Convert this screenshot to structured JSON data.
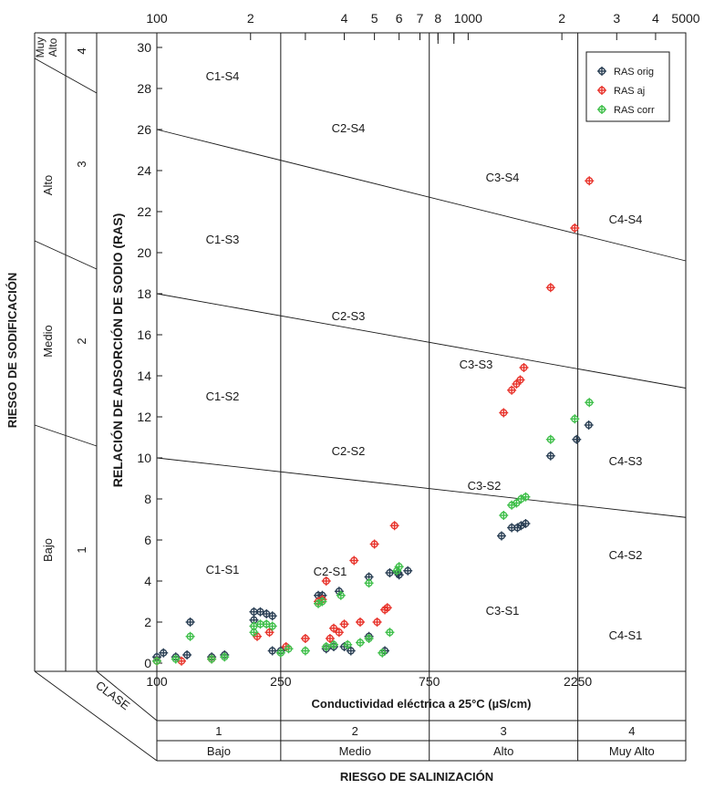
{
  "chart_data": {
    "type": "scatter",
    "x_scale": "log",
    "xlim": [
      100,
      5000
    ],
    "ylim": [
      0,
      30
    ],
    "grid": false,
    "legend_position": "top-right",
    "xlabel": "Conductividad eléctrica a 25°C (µS/cm)",
    "ylabel": "RELACIÓN DE ADSORCIÓN DE SODIO (RAS)",
    "y_ticks": [
      "0",
      "2",
      "4",
      "6",
      "8",
      "10",
      "12",
      "14",
      "16",
      "18",
      "20",
      "22",
      "24",
      "26",
      "28",
      "30"
    ],
    "top_ticks": [
      "100",
      "2",
      "4",
      "5",
      "6",
      "7",
      "8",
      "1000",
      "2",
      "3",
      "4",
      "5000"
    ],
    "bottom_ticks": [
      "100",
      "250",
      "750",
      "2250"
    ],
    "class_label": "CLASE",
    "salinity_title": "RIESGO DE SALINIZACIÓN",
    "salinity_classes": [
      {
        "number": "1",
        "name": "Bajo"
      },
      {
        "number": "2",
        "name": "Medio"
      },
      {
        "number": "3",
        "name": "Alto"
      },
      {
        "number": "4",
        "name": "Muy Alto"
      }
    ],
    "sodification_title": "RIESGO DE SODIFICACIÓN",
    "sodification_classes": [
      {
        "number": "1",
        "name": "Bajo"
      },
      {
        "number": "2",
        "name": "Medio"
      },
      {
        "number": "3",
        "name": "Alto"
      },
      {
        "number": "4",
        "name": "Muy Alto"
      }
    ],
    "zones": [
      "C1-S1",
      "C1-S2",
      "C1-S3",
      "C1-S4",
      "C2-S1",
      "C2-S2",
      "C2-S3",
      "C2-S4",
      "C3-S1",
      "C3-S2",
      "C3-S3",
      "C3-S4",
      "C4-S1",
      "C4-S2",
      "C4-S3",
      "C4-S4"
    ],
    "series": [
      {
        "name": "RAS orig",
        "color": "#2a3f54",
        "points": [
          [
            100,
            0.3
          ],
          [
            105,
            0.5
          ],
          [
            115,
            0.3
          ],
          [
            125,
            0.4
          ],
          [
            128,
            2.0
          ],
          [
            150,
            0.3
          ],
          [
            165,
            0.4
          ],
          [
            205,
            2.5
          ],
          [
            205,
            2.1
          ],
          [
            215,
            2.5
          ],
          [
            225,
            2.4
          ],
          [
            235,
            2.3
          ],
          [
            235,
            0.6
          ],
          [
            250,
            0.6
          ],
          [
            330,
            3.3
          ],
          [
            340,
            3.3
          ],
          [
            350,
            0.7
          ],
          [
            370,
            0.8
          ],
          [
            385,
            3.5
          ],
          [
            400,
            0.8
          ],
          [
            420,
            0.6
          ],
          [
            480,
            1.3
          ],
          [
            480,
            4.2
          ],
          [
            540,
            0.6
          ],
          [
            560,
            4.4
          ],
          [
            595,
            4.4
          ],
          [
            600,
            4.3
          ],
          [
            640,
            4.5
          ],
          [
            1280,
            6.2
          ],
          [
            1380,
            6.6
          ],
          [
            1440,
            6.6
          ],
          [
            1480,
            6.7
          ],
          [
            1530,
            6.8
          ],
          [
            1840,
            10.1
          ],
          [
            2230,
            10.9
          ],
          [
            2440,
            11.6
          ]
        ]
      },
      {
        "name": "RAS aj",
        "color": "#e8342c",
        "points": [
          [
            100,
            0.1
          ],
          [
            120,
            0.1
          ],
          [
            150,
            0.2
          ],
          [
            210,
            1.3
          ],
          [
            230,
            1.5
          ],
          [
            260,
            0.8
          ],
          [
            300,
            1.2
          ],
          [
            330,
            3.0
          ],
          [
            340,
            3.1
          ],
          [
            350,
            4.0
          ],
          [
            360,
            1.2
          ],
          [
            370,
            1.7
          ],
          [
            385,
            1.5
          ],
          [
            400,
            1.9
          ],
          [
            430,
            5.0
          ],
          [
            450,
            2.0
          ],
          [
            500,
            5.8
          ],
          [
            510,
            2.0
          ],
          [
            540,
            2.6
          ],
          [
            550,
            2.7
          ],
          [
            580,
            6.7
          ],
          [
            1300,
            12.2
          ],
          [
            1380,
            13.3
          ],
          [
            1430,
            13.6
          ],
          [
            1470,
            13.8
          ],
          [
            1510,
            14.4
          ],
          [
            1840,
            18.3
          ],
          [
            2200,
            21.2
          ],
          [
            2450,
            23.5
          ]
        ]
      },
      {
        "name": "RAS corr",
        "color": "#3fbf4a",
        "points": [
          [
            100,
            0.1
          ],
          [
            115,
            0.2
          ],
          [
            128,
            1.3
          ],
          [
            150,
            0.2
          ],
          [
            165,
            0.3
          ],
          [
            205,
            1.8
          ],
          [
            205,
            1.5
          ],
          [
            215,
            1.9
          ],
          [
            225,
            1.9
          ],
          [
            235,
            1.8
          ],
          [
            250,
            0.5
          ],
          [
            265,
            0.7
          ],
          [
            300,
            0.6
          ],
          [
            330,
            2.9
          ],
          [
            340,
            3.0
          ],
          [
            350,
            0.8
          ],
          [
            370,
            0.9
          ],
          [
            390,
            3.3
          ],
          [
            410,
            0.9
          ],
          [
            450,
            1.0
          ],
          [
            480,
            1.2
          ],
          [
            480,
            3.9
          ],
          [
            530,
            0.5
          ],
          [
            560,
            1.5
          ],
          [
            590,
            4.5
          ],
          [
            600,
            4.7
          ],
          [
            1300,
            7.2
          ],
          [
            1380,
            7.7
          ],
          [
            1430,
            7.8
          ],
          [
            1480,
            8.0
          ],
          [
            1530,
            8.1
          ],
          [
            1840,
            10.9
          ],
          [
            2200,
            11.9
          ],
          [
            2450,
            12.7
          ]
        ]
      }
    ]
  }
}
